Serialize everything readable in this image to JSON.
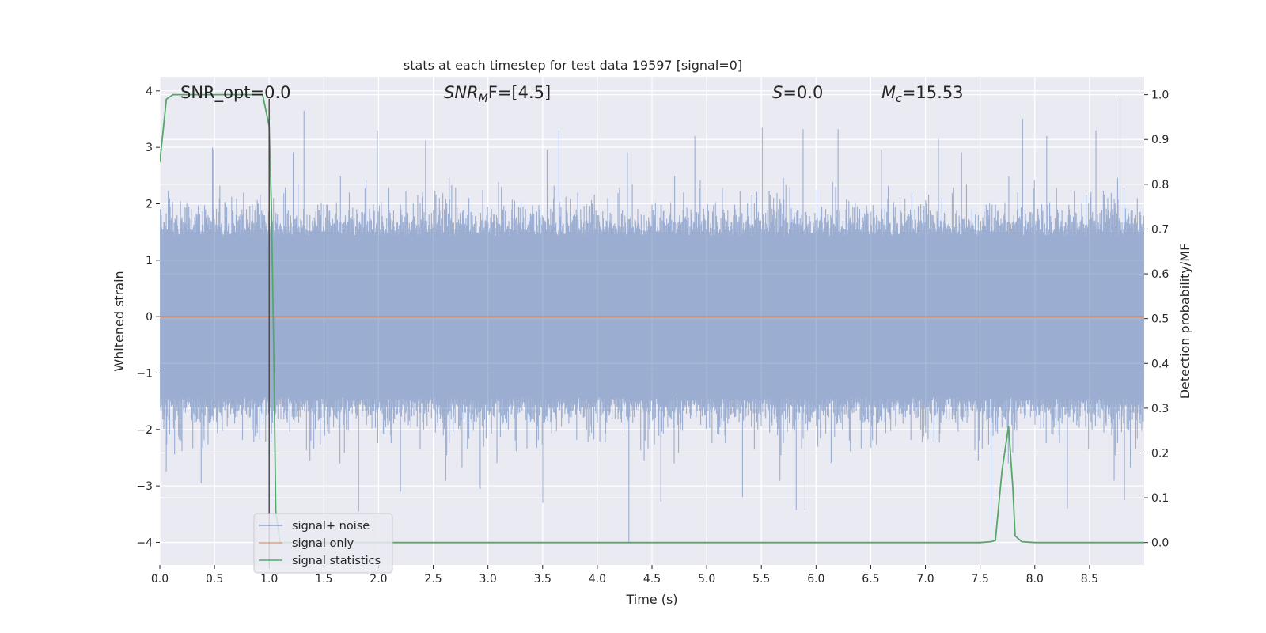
{
  "chart_data": {
    "type": "line",
    "title": "stats at each timestep for test data 19597 [signal=0]",
    "xlabel": "Time (s)",
    "ylabel_left": "Whitened strain",
    "ylabel_right": "Detection probability/MF",
    "xlim": [
      0.0,
      9.0
    ],
    "ylim_left": [
      -4.4,
      4.25
    ],
    "ylim_right": [
      -0.05,
      1.04
    ],
    "x_ticks": [
      "0.0",
      "0.5",
      "1.0",
      "1.5",
      "2.0",
      "2.5",
      "3.0",
      "3.5",
      "4.0",
      "4.5",
      "5.0",
      "5.5",
      "6.0",
      "6.5",
      "7.0",
      "7.5",
      "8.0",
      "8.5"
    ],
    "y_ticks_left": [
      "4",
      "3",
      "2",
      "1",
      "0",
      "−1",
      "−2",
      "−3",
      "−4"
    ],
    "y_ticks_right": [
      "1.0",
      "0.9",
      "0.8",
      "0.7",
      "0.6",
      "0.5",
      "0.4",
      "0.3",
      "0.2",
      "0.1",
      "0.0"
    ],
    "grid": true,
    "background": "#eaeaf2",
    "legend_position": "lower-left",
    "annotations": {
      "snr_opt": "SNR_opt=0.0",
      "snr_mf_main": "SNR",
      "snr_mf_sub": "M",
      "snr_mf_rest": "F=[4.5]",
      "s_main": "S",
      "s_rest": "=0.0",
      "mc_main": "M",
      "mc_sub": "c",
      "mc_rest": "=15.53"
    },
    "vertical_line_x": 1.0,
    "series": [
      {
        "name": "signal+ noise",
        "axis": "left",
        "color": "#4c72b0",
        "envelope": {
          "typical_amplitude": 1.5,
          "max": 3.87,
          "min": -4.0,
          "notable_peaks": [
            {
              "x": 0.48,
              "y": 3.0
            },
            {
              "x": 1.32,
              "y": 3.65
            },
            {
              "x": 1.99,
              "y": 3.3
            },
            {
              "x": 2.43,
              "y": 3.12
            },
            {
              "x": 3.65,
              "y": 3.3
            },
            {
              "x": 4.89,
              "y": 3.2
            },
            {
              "x": 5.51,
              "y": 3.35
            },
            {
              "x": 5.88,
              "y": 3.32
            },
            {
              "x": 6.2,
              "y": 3.32
            },
            {
              "x": 7.12,
              "y": 3.15
            },
            {
              "x": 7.89,
              "y": 3.5
            },
            {
              "x": 8.11,
              "y": 3.2
            },
            {
              "x": 8.56,
              "y": 3.3
            },
            {
              "x": 8.78,
              "y": 3.87
            }
          ],
          "notable_troughs": [
            {
              "x": 0.06,
              "y": -2.75
            },
            {
              "x": 0.38,
              "y": -2.95
            },
            {
              "x": 1.82,
              "y": -3.45
            },
            {
              "x": 2.2,
              "y": -3.1
            },
            {
              "x": 2.93,
              "y": -3.05
            },
            {
              "x": 3.5,
              "y": -3.3
            },
            {
              "x": 4.29,
              "y": -4.0
            },
            {
              "x": 4.58,
              "y": -3.28
            },
            {
              "x": 5.33,
              "y": -3.2
            },
            {
              "x": 5.82,
              "y": -3.43
            },
            {
              "x": 5.9,
              "y": -3.43
            },
            {
              "x": 7.6,
              "y": -3.7
            },
            {
              "x": 8.3,
              "y": -3.4
            },
            {
              "x": 8.82,
              "y": -3.25
            }
          ]
        }
      },
      {
        "name": "signal only",
        "axis": "left",
        "color": "#dd8452",
        "x": [
          0.0,
          9.0
        ],
        "y": [
          0.0,
          0.0
        ]
      },
      {
        "name": "signal statistics",
        "axis": "right",
        "color": "#55a868",
        "x": [
          0.0,
          0.06,
          0.12,
          0.2,
          0.3,
          0.4,
          0.5,
          0.6,
          0.7,
          0.8,
          0.9,
          0.94,
          1.0,
          1.02,
          1.04,
          1.06,
          1.1,
          1.5,
          2.0,
          3.0,
          4.0,
          5.0,
          6.0,
          7.0,
          7.5,
          7.6,
          7.64,
          7.7,
          7.76,
          7.8,
          7.82,
          7.88,
          8.0,
          8.5,
          9.0
        ],
        "y": [
          0.85,
          0.99,
          1.0,
          1.0,
          1.0,
          1.0,
          1.0,
          1.0,
          1.0,
          1.0,
          1.0,
          1.0,
          0.93,
          0.75,
          0.45,
          0.07,
          0.0,
          0.0,
          0.0,
          0.0,
          0.0,
          0.0,
          0.0,
          0.0,
          0.0,
          0.002,
          0.005,
          0.16,
          0.26,
          0.12,
          0.015,
          0.002,
          0.0,
          0.0,
          0.0
        ]
      }
    ]
  }
}
